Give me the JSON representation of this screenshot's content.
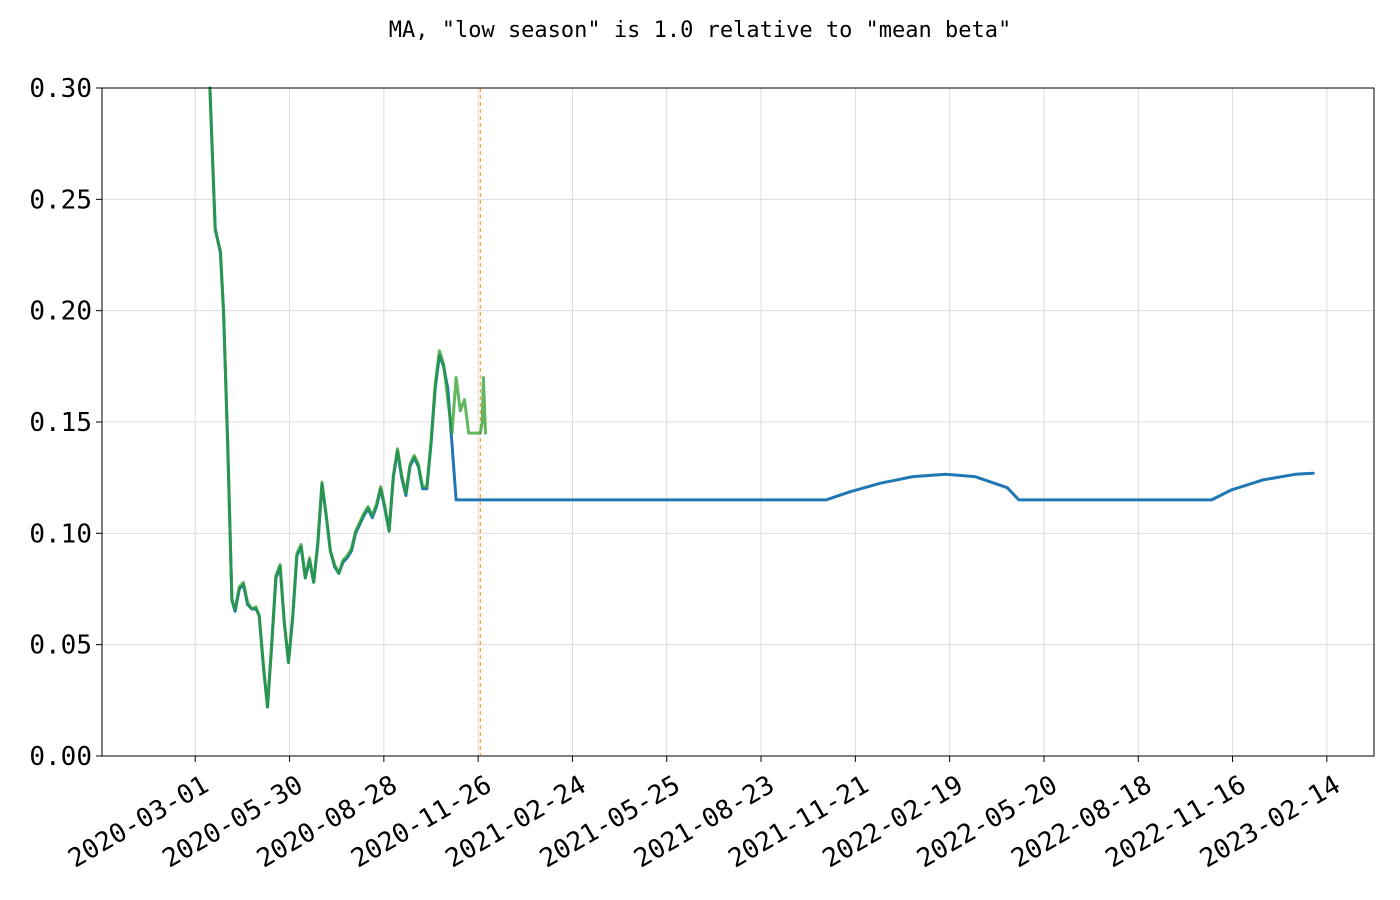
{
  "chart_data": {
    "type": "line",
    "title": "MA, \"low season\" is 1.0 relative to \"mean beta\"",
    "xlabel": "",
    "ylabel": "",
    "x_type": "date",
    "xlim": [
      "2019-12-03",
      "2023-03-31"
    ],
    "ylim": [
      0.0,
      0.3
    ],
    "x_ticks": [
      "2020-03-01",
      "2020-05-30",
      "2020-08-28",
      "2020-11-26",
      "2021-02-24",
      "2021-05-25",
      "2021-08-23",
      "2021-11-21",
      "2022-02-19",
      "2022-05-20",
      "2022-08-18",
      "2022-11-16",
      "2023-02-14"
    ],
    "y_ticks": [
      0.0,
      0.05,
      0.1,
      0.15,
      0.2,
      0.25,
      0.3
    ],
    "y_tick_labels": [
      "0.00",
      "0.05",
      "0.10",
      "0.15",
      "0.20",
      "0.25",
      "0.30"
    ],
    "grid": true,
    "vline": {
      "x": "2020-11-28",
      "color": "#ff7f0e",
      "style": "dashed"
    },
    "series": [
      {
        "color": "#1f77b4",
        "x": [
          "2020-03-15",
          "2020-03-20",
          "2020-03-25",
          "2020-03-28",
          "2020-04-01",
          "2020-04-05",
          "2020-04-08",
          "2020-04-12",
          "2020-04-16",
          "2020-04-20",
          "2020-04-24",
          "2020-04-28",
          "2020-05-01",
          "2020-05-05",
          "2020-05-09",
          "2020-05-13",
          "2020-05-17",
          "2020-05-21",
          "2020-05-25",
          "2020-05-29",
          "2020-06-02",
          "2020-06-06",
          "2020-06-10",
          "2020-06-14",
          "2020-06-18",
          "2020-06-22",
          "2020-06-26",
          "2020-06-30",
          "2020-07-04",
          "2020-07-08",
          "2020-07-12",
          "2020-07-16",
          "2020-07-20",
          "2020-07-24",
          "2020-07-28",
          "2020-08-01",
          "2020-08-05",
          "2020-08-09",
          "2020-08-13",
          "2020-08-17",
          "2020-08-21",
          "2020-08-25",
          "2020-08-29",
          "2020-09-02",
          "2020-09-06",
          "2020-09-10",
          "2020-09-14",
          "2020-09-18",
          "2020-09-22",
          "2020-09-26",
          "2020-09-30",
          "2020-10-04",
          "2020-10-08",
          "2020-10-12",
          "2020-10-16",
          "2020-10-20",
          "2020-10-24",
          "2020-10-28",
          "2020-11-01",
          "2020-11-05",
          "2020-11-09",
          "2020-11-13",
          "2020-11-17",
          "2020-11-21",
          "2020-11-25",
          "2020-11-28",
          "2020-12-02",
          "2020-12-06",
          "2020-12-10",
          "2020-12-14",
          "2021-01-15",
          "2021-02-15",
          "2021-03-15",
          "2021-04-15",
          "2021-05-15",
          "2021-06-15",
          "2021-07-15",
          "2021-08-15",
          "2021-09-15",
          "2021-10-15",
          "2021-10-24",
          "2021-11-15",
          "2021-12-15",
          "2022-01-15",
          "2022-02-15",
          "2022-03-15",
          "2022-04-15",
          "2022-04-26",
          "2022-05-15",
          "2022-06-15",
          "2022-07-15",
          "2022-08-15",
          "2022-09-15",
          "2022-10-15",
          "2022-10-27",
          "2022-11-15",
          "2022-12-15",
          "2023-01-15",
          "2023-02-01"
        ],
        "y": [
          0.3,
          0.237,
          0.226,
          0.2,
          0.14,
          0.07,
          0.065,
          0.075,
          0.077,
          0.068,
          0.066,
          0.066,
          0.063,
          0.04,
          0.022,
          0.05,
          0.08,
          0.085,
          0.06,
          0.042,
          0.062,
          0.09,
          0.094,
          0.08,
          0.088,
          0.078,
          0.095,
          0.122,
          0.108,
          0.092,
          0.085,
          0.082,
          0.087,
          0.089,
          0.092,
          0.1,
          0.104,
          0.108,
          0.111,
          0.107,
          0.112,
          0.12,
          0.111,
          0.101,
          0.125,
          0.137,
          0.125,
          0.117,
          0.13,
          0.134,
          0.13,
          0.12,
          0.12,
          0.14,
          0.165,
          0.18,
          0.175,
          0.165,
          0.14,
          0.115,
          0.115,
          0.115,
          0.115,
          0.115,
          0.115,
          0.115,
          0.115,
          0.115,
          0.115,
          0.115,
          0.115,
          0.115,
          0.115,
          0.115,
          0.115,
          0.115,
          0.115,
          0.115,
          0.115,
          0.115,
          0.115,
          0.1185,
          0.1225,
          0.1255,
          0.1265,
          0.1255,
          0.1205,
          0.115,
          0.115,
          0.115,
          0.115,
          0.115,
          0.115,
          0.115,
          0.115,
          0.1195,
          0.124,
          0.1265,
          0.127
        ]
      },
      {
        "color": "#2ca02c",
        "opacity": 0.75,
        "x": [
          "2020-03-15",
          "2020-03-20",
          "2020-03-25",
          "2020-03-28",
          "2020-04-01",
          "2020-04-05",
          "2020-04-08",
          "2020-04-12",
          "2020-04-16",
          "2020-04-20",
          "2020-04-24",
          "2020-04-28",
          "2020-05-01",
          "2020-05-05",
          "2020-05-09",
          "2020-05-13",
          "2020-05-17",
          "2020-05-21",
          "2020-05-25",
          "2020-05-29",
          "2020-06-02",
          "2020-06-06",
          "2020-06-10",
          "2020-06-14",
          "2020-06-18",
          "2020-06-22",
          "2020-06-26",
          "2020-06-30",
          "2020-07-04",
          "2020-07-08",
          "2020-07-12",
          "2020-07-16",
          "2020-07-20",
          "2020-07-24",
          "2020-07-28",
          "2020-08-01",
          "2020-08-05",
          "2020-08-09",
          "2020-08-13",
          "2020-08-17",
          "2020-08-21",
          "2020-08-25",
          "2020-08-29",
          "2020-09-02",
          "2020-09-06",
          "2020-09-10",
          "2020-09-14",
          "2020-09-18",
          "2020-09-22",
          "2020-09-26",
          "2020-09-30",
          "2020-10-04",
          "2020-10-08",
          "2020-10-12",
          "2020-10-16",
          "2020-10-20",
          "2020-10-24",
          "2020-10-28",
          "2020-11-01",
          "2020-11-05",
          "2020-11-09",
          "2020-11-13",
          "2020-11-17",
          "2020-11-21",
          "2020-11-25",
          "2020-11-28",
          "2020-11-30",
          "2020-12-01",
          "2020-12-03"
        ],
        "y": [
          0.3,
          0.236,
          0.227,
          0.2,
          0.14,
          0.07,
          0.066,
          0.076,
          0.078,
          0.069,
          0.066,
          0.067,
          0.063,
          0.041,
          0.022,
          0.05,
          0.081,
          0.086,
          0.06,
          0.042,
          0.063,
          0.091,
          0.095,
          0.08,
          0.089,
          0.078,
          0.096,
          0.123,
          0.108,
          0.092,
          0.086,
          0.082,
          0.088,
          0.09,
          0.093,
          0.101,
          0.105,
          0.109,
          0.112,
          0.108,
          0.113,
          0.121,
          0.112,
          0.101,
          0.126,
          0.138,
          0.126,
          0.118,
          0.131,
          0.135,
          0.131,
          0.121,
          0.121,
          0.141,
          0.167,
          0.182,
          0.176,
          0.16,
          0.145,
          0.17,
          0.155,
          0.16,
          0.145,
          0.145,
          0.145,
          0.145,
          0.15,
          0.17,
          0.145
        ]
      }
    ]
  }
}
